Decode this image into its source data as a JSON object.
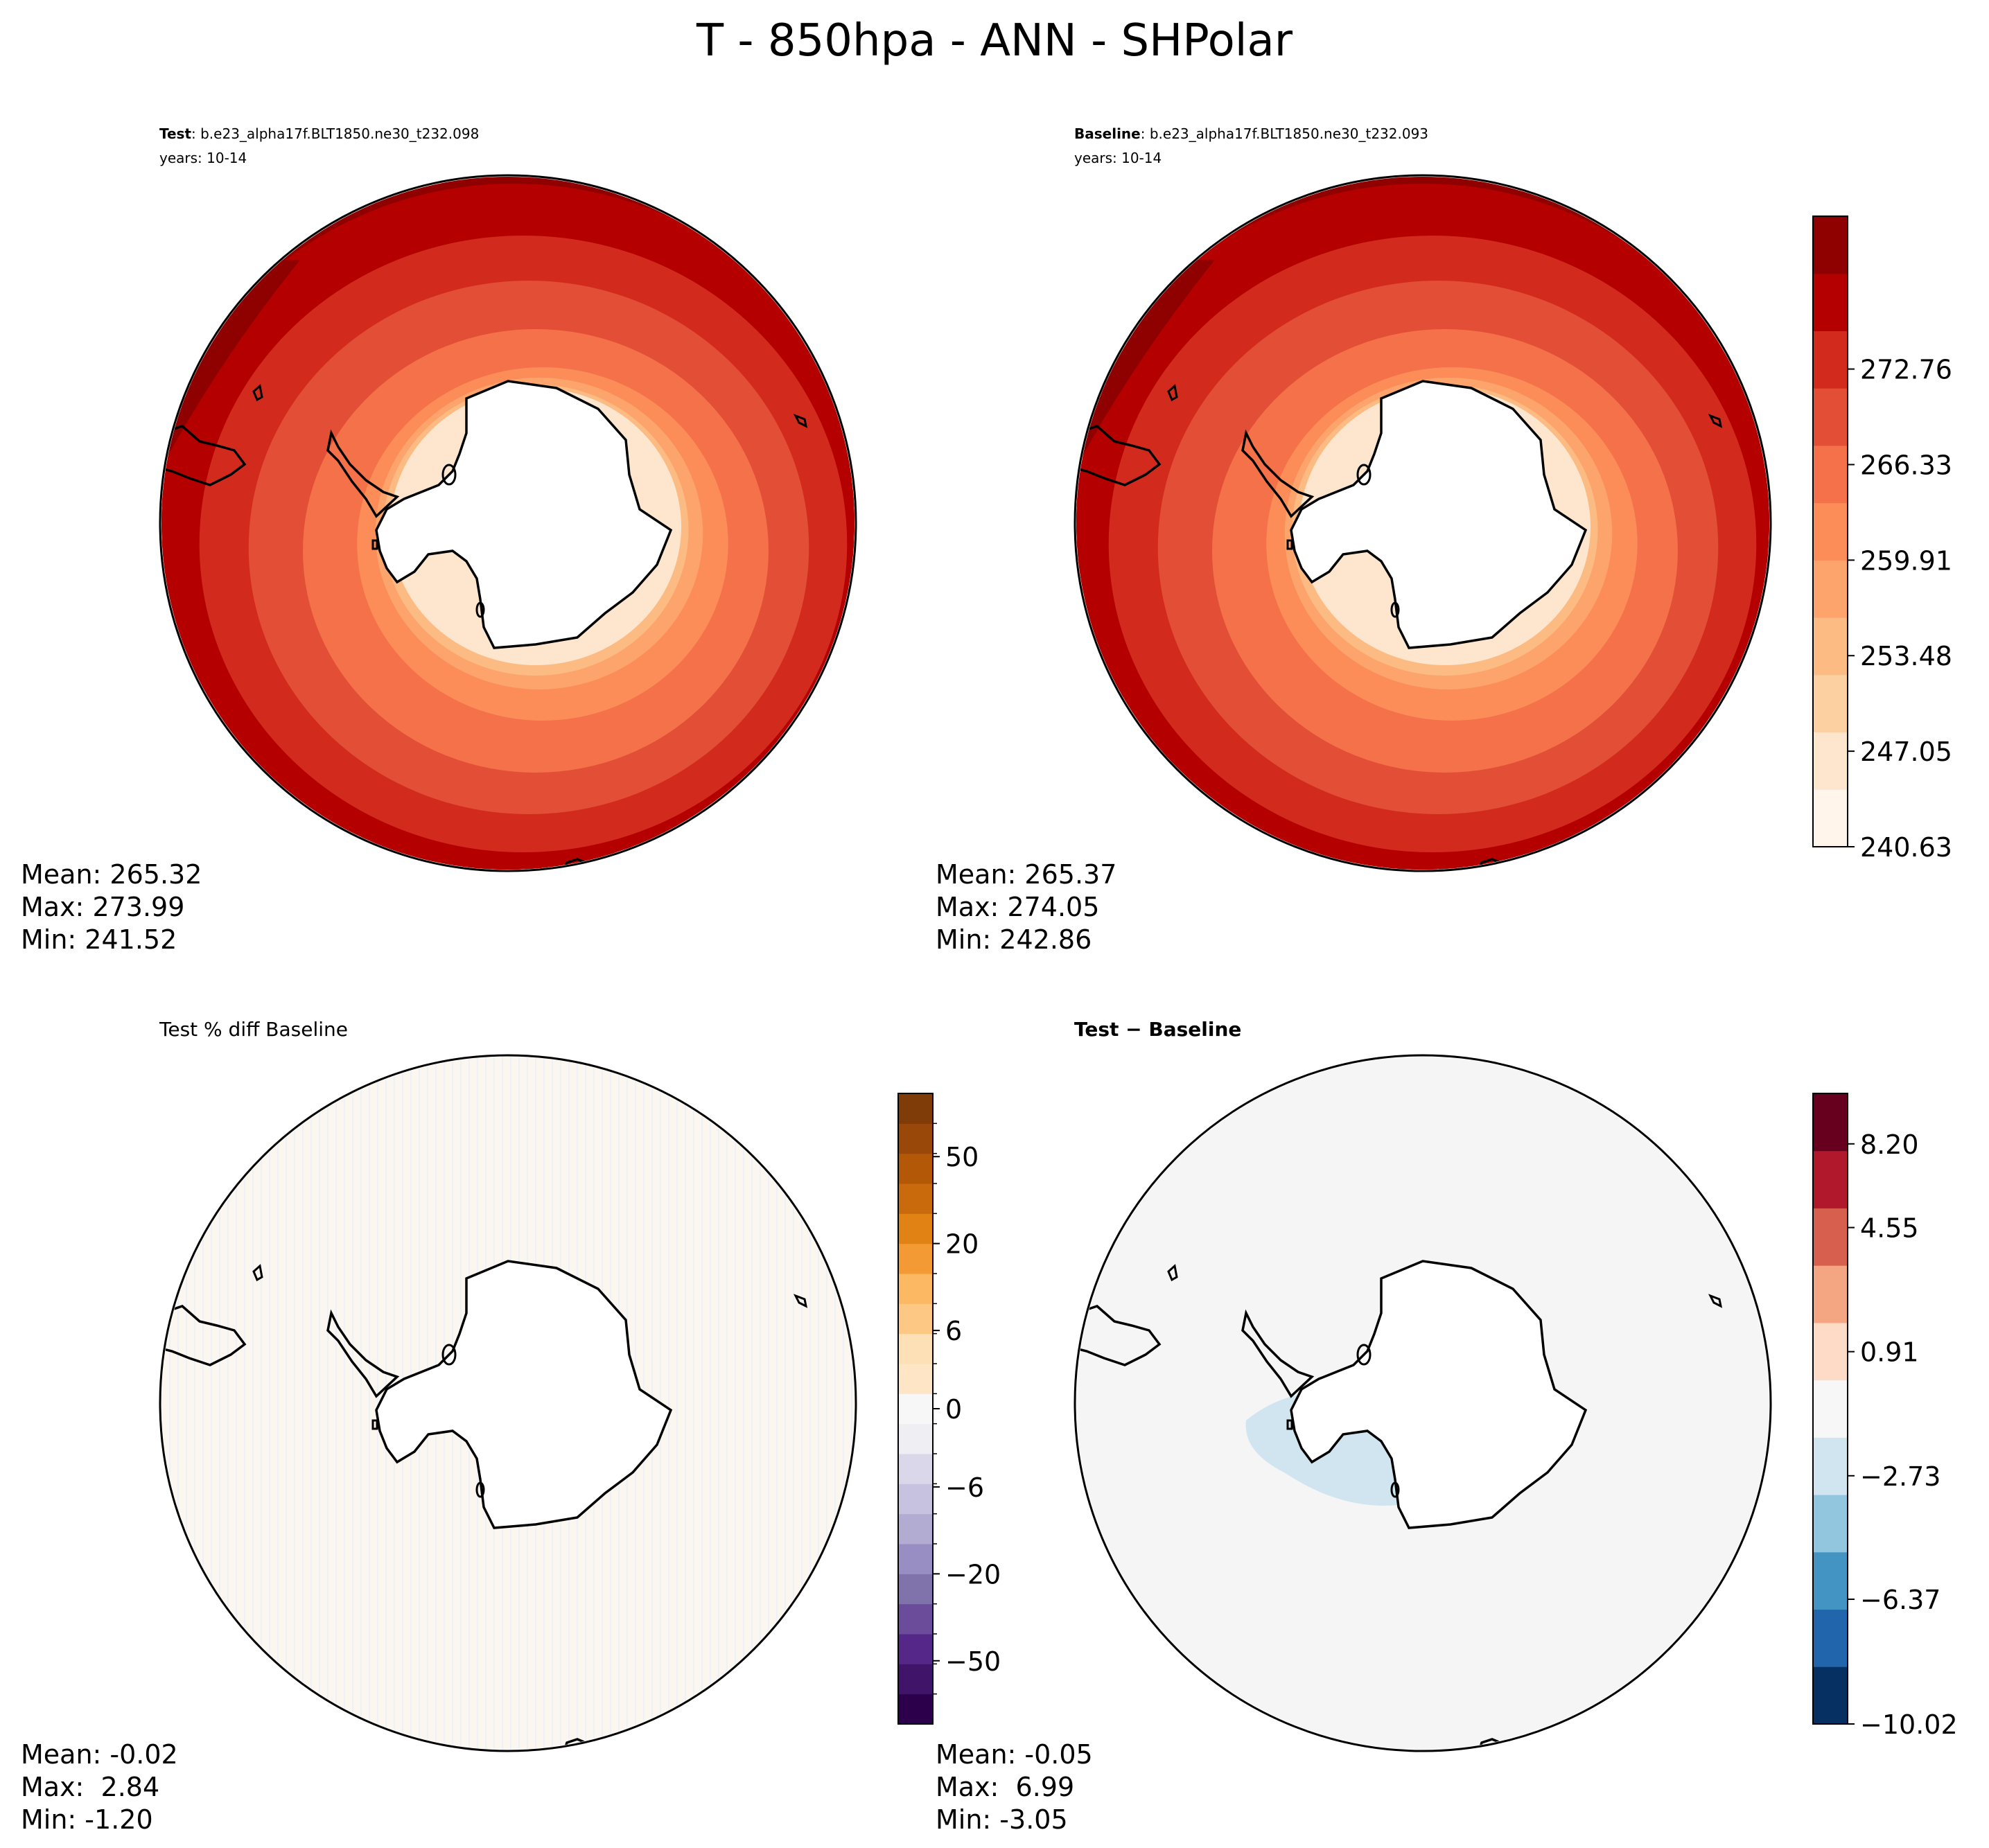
{
  "figure": {
    "title": "T - 850hpa - ANN - SHPolar"
  },
  "panels": {
    "test": {
      "label_bold": "Test",
      "label_rest": ": b.e23_alpha17f.BLT1850.ne30_t232.098",
      "years": "years: 10-14",
      "stats": {
        "mean": "Mean: 265.32",
        "max": "Max: 273.99",
        "min": "Min: 241.52"
      }
    },
    "baseline": {
      "label_bold": "Baseline",
      "label_rest": ": b.e23_alpha17f.BLT1850.ne30_t232.093",
      "years": "years: 10-14",
      "stats": {
        "mean": "Mean: 265.37",
        "max": "Max: 274.05",
        "min": "Min: 242.86"
      }
    },
    "pctdiff": {
      "title": "Test % diff Baseline",
      "stats": {
        "mean": "Mean: -0.02",
        "max": "Max:  2.84",
        "min": "Min: -1.20"
      }
    },
    "diff": {
      "title": "Test − Baseline",
      "stats": {
        "mean": "Mean: -0.05",
        "max": "Max:  6.99",
        "min": "Min: -3.05"
      }
    }
  },
  "chart_data": [
    {
      "type": "heatmap",
      "panel": "test",
      "projection": "south-polar-stereographic",
      "colormap": "Reds",
      "levels": [
        240.63,
        243.85,
        247.05,
        250.27,
        253.48,
        256.7,
        259.91,
        263.13,
        266.33,
        269.55,
        272.76,
        275.98
      ],
      "colorbar_ticks": [
        "240.63",
        "247.05",
        "253.48",
        "259.91",
        "266.33",
        "272.76"
      ],
      "mean": 265.32,
      "max": 273.99,
      "min": 241.52
    },
    {
      "type": "heatmap",
      "panel": "baseline",
      "projection": "south-polar-stereographic",
      "colormap": "Reds",
      "levels": [
        240.63,
        243.85,
        247.05,
        250.27,
        253.48,
        256.7,
        259.91,
        263.13,
        266.33,
        269.55,
        272.76,
        275.98
      ],
      "colorbar_ticks": [
        "240.63",
        "247.05",
        "253.48",
        "259.91",
        "266.33",
        "272.76"
      ],
      "mean": 265.37,
      "max": 274.05,
      "min": 242.86
    },
    {
      "type": "heatmap",
      "panel": "pctdiff",
      "projection": "south-polar-stereographic",
      "colormap": "PuOr_r",
      "colorbar_ticks": [
        "-50",
        "-20",
        "-6",
        "0",
        "6",
        "20",
        "50"
      ],
      "mean": -0.02,
      "max": 2.84,
      "min": -1.2
    },
    {
      "type": "heatmap",
      "panel": "diff",
      "projection": "south-polar-stereographic",
      "colormap": "RdBu_r",
      "colorbar_ticks": [
        "-10.02",
        "-6.37",
        "-2.73",
        "0.91",
        "4.55",
        "8.20"
      ],
      "mean": -0.05,
      "max": 6.99,
      "min": -3.05
    }
  ],
  "colormaps": {
    "reds": [
      "#fff5eb",
      "#fee6ce",
      "#fdd0a2",
      "#fdbb84",
      "#fca46c",
      "#fc8d59",
      "#f4714a",
      "#e24e36",
      "#d22b1e",
      "#b50000",
      "#8f0000"
    ],
    "puor": [
      "#2d004b",
      "#3f1469",
      "#542788",
      "#6b4c9a",
      "#8073ac",
      "#998ec3",
      "#b2abd2",
      "#c7c2df",
      "#dbd7ea",
      "#eeeef3",
      "#f7f7f7",
      "#fde5c6",
      "#fee0b6",
      "#fdc883",
      "#fdb863",
      "#f39a35",
      "#e08214",
      "#c96a0d",
      "#b35806",
      "#99480a",
      "#7f3b08"
    ],
    "rdbu": [
      "#053061",
      "#2166ac",
      "#4393c3",
      "#92c5de",
      "#d1e5f0",
      "#f7f7f7",
      "#fddbc7",
      "#f4a582",
      "#d6604d",
      "#b2182b",
      "#67001f"
    ]
  }
}
